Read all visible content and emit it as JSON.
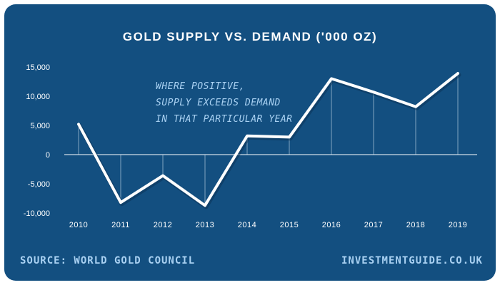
{
  "chart_data": {
    "type": "line",
    "title": "GOLD SUPPLY VS. DEMAND ('000 OZ)",
    "x": [
      "2010",
      "2011",
      "2012",
      "2013",
      "2014",
      "2015",
      "2016",
      "2017",
      "2018",
      "2019"
    ],
    "series": [
      {
        "values": [
          5200,
          -8200,
          -3600,
          -8700,
          3200,
          3000,
          13000,
          10700,
          8200,
          13900
        ]
      }
    ],
    "ylim": [
      -10000,
      15000
    ],
    "yticks": [
      15000,
      10000,
      5000,
      0,
      -5000,
      -10000
    ],
    "ytick_labels": [
      "15,000",
      "10,000",
      "5,000",
      "0",
      "-5,000",
      "-10,000"
    ],
    "xlabel": "",
    "ylabel": "",
    "grid": false,
    "annotation": [
      "WHERE POSITIVE,",
      "SUPPLY EXCEEDS DEMAND",
      "IN THAT PARTICULAR YEAR"
    ]
  },
  "footer": {
    "source": "SOURCE: WORLD GOLD COUNCIL",
    "site": "INVESTMENTGUIDE.CO.UK"
  },
  "colors": {
    "background": "#134f80",
    "line": "#ffffff",
    "accent_text": "#a9d1f2"
  }
}
